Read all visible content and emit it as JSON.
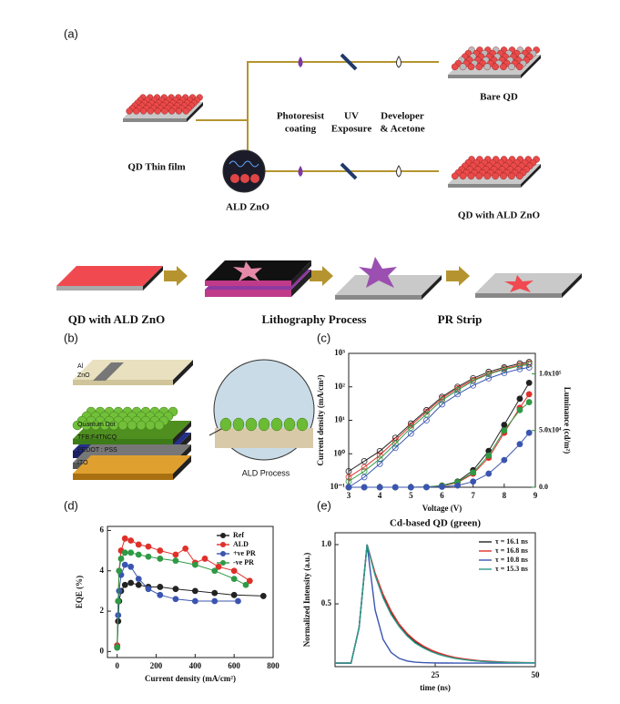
{
  "panel_labels": [
    "(a)",
    "(b)",
    "(c)",
    "(d)",
    "(e)"
  ],
  "process": {
    "qd_thin_film": "QD Thin film",
    "ald_zno": "ALD ZnO",
    "steps": [
      [
        "Photoresist",
        "coating"
      ],
      [
        "UV",
        "Exposure"
      ],
      [
        "Developer",
        "& Acetone"
      ]
    ],
    "bare_qd": "Bare QD",
    "qd_with_ald": "QD with ALD ZnO",
    "bottom": [
      "QD with ALD ZnO",
      "Lithography Process",
      "PR Strip"
    ]
  },
  "device": {
    "layers": [
      "Al",
      "ZnO",
      "Quantum Dot",
      "TFB:F4TNCQ",
      "PEDOT : PSS",
      "ITO"
    ],
    "ald_process": "ALD Process"
  },
  "chart_data": [
    {
      "type": "line",
      "xlabel": "Voltage (V)",
      "ylabel": "Current density (mA/cm²)",
      "y2label": "Luminance (cd/m²)",
      "x": [
        3,
        3.5,
        4,
        4.5,
        5,
        5.5,
        6,
        6.5,
        7,
        7.5,
        8,
        8.5,
        8.8
      ],
      "xlim": [
        3,
        9
      ],
      "xticks": [
        3,
        4,
        5,
        6,
        7,
        8,
        9
      ],
      "log_y": true,
      "ylim": [
        0.1,
        1000
      ],
      "yticks": [
        {
          "value": 0.1,
          "label": "10⁻¹"
        },
        {
          "value": 1,
          "label": "10⁰"
        },
        {
          "value": 10,
          "label": "10¹"
        },
        {
          "value": 100,
          "label": "10²"
        },
        {
          "value": 1000,
          "label": "10³"
        }
      ],
      "y2lim": [
        0,
        118000
      ],
      "y2color": "#2e8b3a",
      "y2ticks": [
        {
          "value": 0,
          "label": "0.0"
        },
        {
          "value": 50000,
          "label": "5.0x10⁴"
        },
        {
          "value": 100000,
          "label": "1.0x10⁵"
        }
      ],
      "markers": true,
      "series": [
        {
          "color": "#222222",
          "marker": "open",
          "values": [
            0.3,
            0.6,
            1.2,
            3,
            8,
            20,
            50,
            100,
            180,
            280,
            380,
            500,
            550
          ]
        },
        {
          "color": "#e0302a",
          "marker": "open",
          "values": [
            0.2,
            0.4,
            0.9,
            2.5,
            7,
            18,
            45,
            90,
            160,
            250,
            350,
            450,
            500
          ]
        },
        {
          "color": "#2f9a45",
          "marker": "open",
          "values": [
            0.15,
            0.3,
            0.7,
            2,
            6,
            15,
            40,
            80,
            150,
            240,
            330,
            420,
            470
          ]
        },
        {
          "color": "#3a55b0",
          "marker": "open",
          "values": [
            0.1,
            0.2,
            0.5,
            1.5,
            4,
            10,
            30,
            60,
            110,
            180,
            260,
            340,
            380
          ]
        },
        {
          "color": "#222222",
          "marker": "filled",
          "axis": "y2",
          "values": [
            0,
            0,
            0,
            0,
            0,
            200,
            1500,
            5000,
            15000,
            32000,
            55000,
            78000,
            92000
          ]
        },
        {
          "color": "#e0302a",
          "marker": "filled",
          "axis": "y2",
          "values": [
            0,
            0,
            0,
            0,
            0,
            100,
            1000,
            4000,
            12000,
            26000,
            48000,
            70000,
            82000
          ]
        },
        {
          "color": "#2f9a45",
          "marker": "filled",
          "axis": "y2",
          "values": [
            0,
            0,
            0,
            0,
            0,
            150,
            1200,
            4500,
            13000,
            28000,
            50000,
            68000,
            75000
          ]
        },
        {
          "color": "#3a55b0",
          "marker": "filled",
          "axis": "y2",
          "values": [
            0,
            0,
            0,
            0,
            0,
            50,
            400,
            1500,
            5000,
            12000,
            24000,
            38000,
            48000
          ]
        }
      ]
    },
    {
      "type": "line",
      "xlabel": "Current density (mA/cm²)",
      "ylabel": "EQE (%)",
      "xlim": [
        -50,
        800
      ],
      "xticks": [
        0,
        200,
        400,
        600,
        800
      ],
      "ylim": [
        -0.3,
        6.2
      ],
      "yticks": [
        0,
        2,
        4,
        6
      ],
      "markers": true,
      "legend": "upper right",
      "series": [
        {
          "name": "Ref",
          "color": "#222222",
          "x": [
            0,
            5,
            10,
            20,
            40,
            70,
            110,
            160,
            220,
            300,
            400,
            500,
            600,
            750
          ],
          "values": [
            0.2,
            1.5,
            2.5,
            3,
            3.3,
            3.4,
            3.3,
            3.2,
            3.2,
            3.1,
            3,
            2.9,
            2.8,
            2.75
          ]
        },
        {
          "name": "ALD",
          "color": "#e0302a",
          "x": [
            0,
            5,
            10,
            20,
            40,
            70,
            110,
            160,
            220,
            300,
            350,
            400,
            450,
            520,
            600,
            680
          ],
          "values": [
            0.3,
            2.5,
            4,
            5,
            5.6,
            5.5,
            5.3,
            5.2,
            5,
            4.8,
            5.1,
            4.4,
            4.6,
            4.2,
            4,
            3.5
          ]
        },
        {
          "name": "+ve PR",
          "color": "#3a55b0",
          "x": [
            0,
            5,
            10,
            20,
            40,
            70,
            110,
            160,
            220,
            300,
            400,
            500,
            620
          ],
          "values": [
            0.2,
            1.8,
            3,
            3.8,
            4.3,
            4.2,
            3.6,
            3.1,
            2.8,
            2.6,
            2.5,
            2.5,
            2.5
          ]
        },
        {
          "name": "-ve PR",
          "color": "#2f9a45",
          "x": [
            0,
            5,
            10,
            20,
            40,
            70,
            110,
            160,
            220,
            300,
            400,
            500,
            600,
            660
          ],
          "values": [
            0.2,
            2.5,
            4,
            4.6,
            4.9,
            4.9,
            4.8,
            4.7,
            4.6,
            4.5,
            4.3,
            4,
            3.6,
            3.3
          ]
        }
      ]
    },
    {
      "type": "line",
      "title": "Cd-based QD (green)",
      "xlabel": "time (ns)",
      "ylabel": "Normalized Intensity (a.u.)",
      "x": [
        0,
        2,
        4,
        6,
        8,
        10,
        12,
        14,
        16,
        18,
        20,
        22,
        24,
        26,
        28,
        30,
        32,
        34,
        36,
        38,
        40,
        42,
        44,
        46,
        48,
        50
      ],
      "xlim": [
        0,
        50
      ],
      "xticks": [
        25,
        50
      ],
      "ylim": [
        -0.03,
        1.1
      ],
      "yticks": [
        0.5,
        {
          "value": 1,
          "label": "1.0"
        }
      ],
      "legend": "upper right",
      "series": [
        {
          "name": "τ = 16.1 ns",
          "color": "#222222",
          "values": [
            0,
            0,
            0,
            0.3,
            1,
            0.75,
            0.56,
            0.42,
            0.32,
            0.24,
            0.18,
            0.135,
            0.1,
            0.076,
            0.057,
            0.043,
            0.032,
            0.024,
            0.018,
            0.014,
            0.01,
            0.008,
            0.006,
            0.004,
            0.003,
            0.002
          ]
        },
        {
          "name": "τ = 16.8 ns",
          "color": "#e0302a",
          "values": [
            0,
            0,
            0,
            0.3,
            1,
            0.76,
            0.58,
            0.44,
            0.33,
            0.25,
            0.19,
            0.145,
            0.11,
            0.084,
            0.064,
            0.048,
            0.037,
            0.028,
            0.021,
            0.016,
            0.012,
            0.009,
            0.007,
            0.005,
            0.004,
            0.003
          ]
        },
        {
          "name": "τ = 10.8 ns",
          "color": "#3a55b0",
          "values": [
            0,
            0,
            0,
            0.3,
            1,
            0.45,
            0.2,
            0.09,
            0.04,
            0.018,
            0.008,
            0.004,
            0.002,
            0.001,
            0.001,
            0,
            0,
            0,
            0,
            0,
            0,
            0,
            0,
            0,
            0,
            0
          ]
        },
        {
          "name": "τ = 15.3 ns",
          "color": "#2a9a8a",
          "values": [
            0,
            0,
            0,
            0.3,
            1,
            0.74,
            0.55,
            0.41,
            0.31,
            0.23,
            0.17,
            0.13,
            0.097,
            0.072,
            0.054,
            0.04,
            0.03,
            0.022,
            0.017,
            0.012,
            0.009,
            0.007,
            0.005,
            0.004,
            0.003,
            0.002
          ]
        }
      ]
    }
  ]
}
